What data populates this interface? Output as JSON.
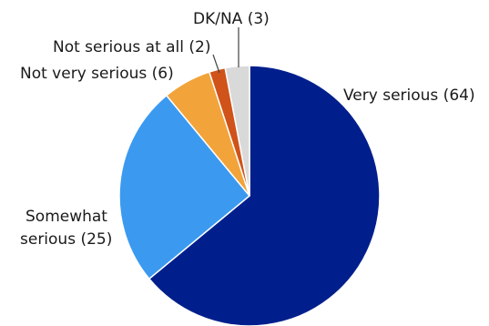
{
  "chart_data": {
    "type": "pie",
    "title": "",
    "start": "top",
    "direction": "clockwise",
    "slices": [
      {
        "label": "Very serious (64)",
        "category": "Very serious",
        "value": 64,
        "color": "#001F8C"
      },
      {
        "label": "Somewhat serious (25)",
        "category": "Somewhat serious",
        "value": 25,
        "color": "#3B9AF0"
      },
      {
        "label": "Not very serious (6)",
        "category": "Not very serious",
        "value": 6,
        "color": "#F2A33A"
      },
      {
        "label": "Not serious at all (2)",
        "category": "Not serious at all",
        "value": 2,
        "color": "#D0531A"
      },
      {
        "label": "DK/NA (3)",
        "category": "DK/NA",
        "value": 3,
        "color": "#D9D9D9"
      }
    ],
    "label_lines": {
      "somewhat_serious": [
        "Somewhat",
        "serious (25)"
      ]
    }
  }
}
